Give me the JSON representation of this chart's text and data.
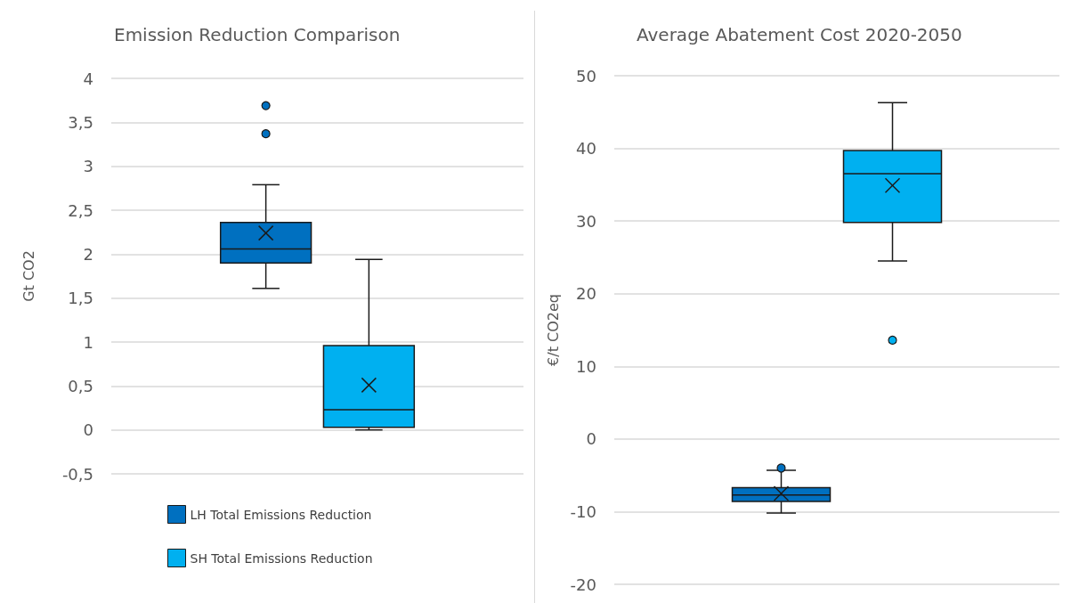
{
  "chart_data": [
    {
      "type": "box",
      "title": "Emission Reduction Comparison",
      "ylabel": "Gt CO2",
      "categories": [
        null
      ],
      "ylim": [
        -0.5,
        4
      ],
      "yticks": [
        {
          "value": -0.5,
          "label": "-0,5"
        },
        0,
        {
          "value": 0.5,
          "label": "0,5"
        },
        1,
        {
          "value": 1.5,
          "label": "1,5"
        },
        2,
        {
          "value": 2.5,
          "label": "2,5"
        },
        3,
        {
          "value": 3.5,
          "label": "3,5"
        },
        4
      ],
      "grid": "y",
      "legend": "bottom left",
      "series": [
        {
          "name": "LH Total Emissions Reduction",
          "color": "#0070c0",
          "boxes": [
            {
              "low": 1.61,
              "q1": 1.9,
              "median": 2.06,
              "q3": 2.36,
              "high": 2.79,
              "mean": 2.24,
              "outliers": [
                3.37,
                3.69
              ]
            }
          ]
        },
        {
          "name": "SH Total Emissions Reduction",
          "color": "#00b0f0",
          "boxes": [
            {
              "low": 0,
              "q1": 0.03,
              "median": 0.23,
              "q3": 0.96,
              "high": 1.94,
              "mean": 0.51
            }
          ]
        }
      ]
    },
    {
      "type": "box",
      "title": "Average Abatement Cost 2020-2050",
      "ylabel": "€/t CO2eq",
      "categories": [
        null
      ],
      "ylim": [
        -20,
        50
      ],
      "yticks": [
        -20,
        -10,
        0,
        10,
        20,
        30,
        40,
        50
      ],
      "grid": "y",
      "legend": false,
      "series": [
        {
          "color": "#0070c0",
          "boxes": [
            {
              "low": -10.2,
              "q1": -8.6,
              "median": -7.7,
              "q3": -6.7,
              "high": -4.3,
              "mean": -7.5,
              "outliers": [
                -4.0
              ]
            }
          ]
        },
        {
          "color": "#00b0f0",
          "boxes": [
            {
              "low": 24.5,
              "q1": 29.8,
              "median": 36.5,
              "q3": 39.7,
              "high": 46.3,
              "mean": 34.9,
              "outliers": [
                13.6
              ]
            }
          ]
        }
      ]
    }
  ]
}
